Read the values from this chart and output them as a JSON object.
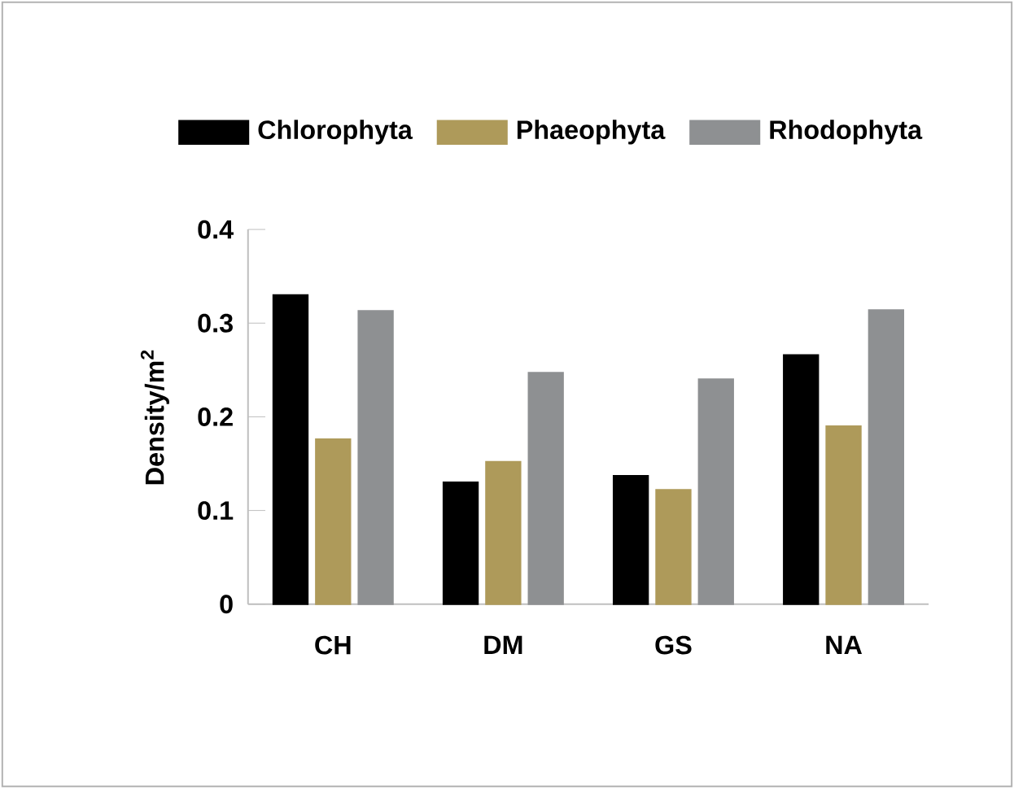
{
  "chart_data": {
    "type": "bar",
    "ylabel": "Density/m$^{2}$",
    "categories": [
      "CH",
      "DM",
      "GS",
      "NA"
    ],
    "series": [
      {
        "name": "Chlorophyta",
        "color": "#000000",
        "values": [
          0.33,
          0.13,
          0.137,
          0.266
        ]
      },
      {
        "name": "Phaeophyta",
        "color": "#ae9a5a",
        "values": [
          0.176,
          0.152,
          0.122,
          0.19
        ]
      },
      {
        "name": "Rhodophyta",
        "color": "#8e9092",
        "values": [
          0.313,
          0.247,
          0.24,
          0.314
        ]
      }
    ],
    "ylim": [
      0,
      0.4
    ],
    "yticks": [
      0,
      0.1,
      0.2,
      0.3,
      0.4
    ],
    "grid": false,
    "legend": "top"
  }
}
